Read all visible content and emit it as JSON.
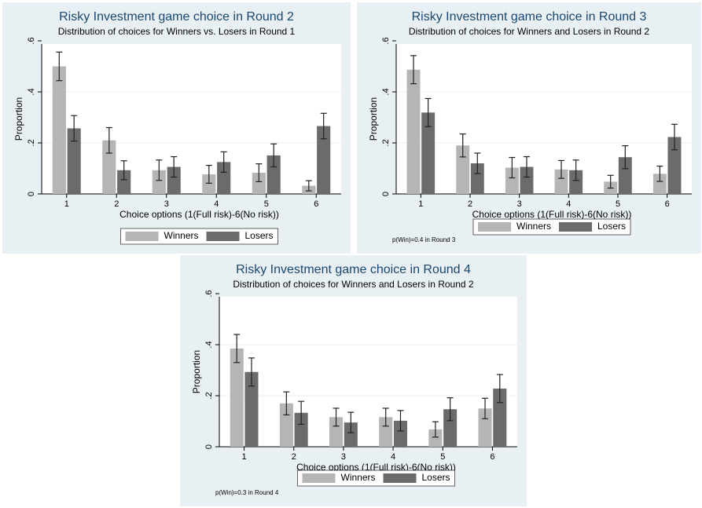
{
  "chart_data": [
    {
      "type": "bar",
      "title": "Risky Investment game choice in Round 2",
      "subtitle": "Distribution of choices for Winners vs. Losers in Round 1",
      "y_label": "Proportion",
      "x_label": "Choice options (1(Full risk)-6(No risk))",
      "categories": [
        "1",
        "2",
        "3",
        "4",
        "5",
        "6"
      ],
      "series": [
        {
          "name": "Winners",
          "color": "#b5b5b5",
          "values": [
            0.5,
            0.21,
            0.093,
            0.077,
            0.083,
            0.032
          ],
          "errors": [
            0.056,
            0.05,
            0.04,
            0.035,
            0.035,
            0.02
          ]
        },
        {
          "name": "Losers",
          "color": "#6b6b6b",
          "values": [
            0.257,
            0.093,
            0.106,
            0.125,
            0.151,
            0.266
          ],
          "errors": [
            0.05,
            0.037,
            0.04,
            0.04,
            0.045,
            0.05
          ]
        }
      ],
      "ylim": [
        0,
        0.6
      ],
      "yticks": [
        0,
        {
          "value": 0.2,
          "label": ".2"
        },
        {
          "value": 0.4,
          "label": ".4"
        },
        {
          "value": 0.6,
          "label": ".6"
        }
      ],
      "grid": true
    },
    {
      "type": "bar",
      "title": "Risky Investment game choice in Round 3",
      "subtitle": "Distribution of choices for Winners and Losers in Round 2",
      "y_label": "Proportion",
      "x_label": "Choice options (1(Full risk)-6(No risk))",
      "note": "p(Win)=0.4 in Round 3",
      "categories": [
        "1",
        "2",
        "3",
        "4",
        "5",
        "6"
      ],
      "series": [
        {
          "name": "Winners",
          "color": "#b5b5b5",
          "values": [
            0.487,
            0.19,
            0.103,
            0.096,
            0.048,
            0.079
          ],
          "errors": [
            0.055,
            0.045,
            0.04,
            0.035,
            0.025,
            0.03
          ]
        },
        {
          "name": "Losers",
          "color": "#6b6b6b",
          "values": [
            0.319,
            0.12,
            0.106,
            0.093,
            0.144,
            0.223
          ],
          "errors": [
            0.055,
            0.04,
            0.04,
            0.04,
            0.045,
            0.05
          ]
        }
      ],
      "ylim": [
        0,
        0.6
      ],
      "yticks": [
        0,
        {
          "value": 0.2,
          "label": ".2"
        },
        {
          "value": 0.4,
          "label": ".4"
        },
        {
          "value": 0.6,
          "label": ".6"
        }
      ],
      "grid": true
    },
    {
      "type": "bar",
      "title": "Risky Investment game choice in Round 4",
      "subtitle": "Distribution of choices for Winners and Losers in Round 2",
      "y_label": "Proportion",
      "x_label": "Choice options (1(Full risk)-6(No risk))",
      "note": "p(Win)=0.3 in Round 4",
      "categories": [
        "1",
        "2",
        "3",
        "4",
        "5",
        "6"
      ],
      "series": [
        {
          "name": "Winners",
          "color": "#b5b5b5",
          "values": [
            0.385,
            0.17,
            0.116,
            0.116,
            0.068,
            0.15
          ],
          "errors": [
            0.055,
            0.045,
            0.035,
            0.035,
            0.03,
            0.04
          ]
        },
        {
          "name": "Losers",
          "color": "#6b6b6b",
          "values": [
            0.293,
            0.133,
            0.095,
            0.102,
            0.147,
            0.228
          ],
          "errors": [
            0.055,
            0.045,
            0.04,
            0.04,
            0.045,
            0.055
          ]
        }
      ],
      "ylim": [
        0,
        0.6
      ],
      "yticks": [
        0,
        {
          "value": 0.2,
          "label": ".2"
        },
        {
          "value": 0.4,
          "label": ".4"
        },
        {
          "value": 0.6,
          "label": ".6"
        }
      ],
      "grid": true
    }
  ]
}
